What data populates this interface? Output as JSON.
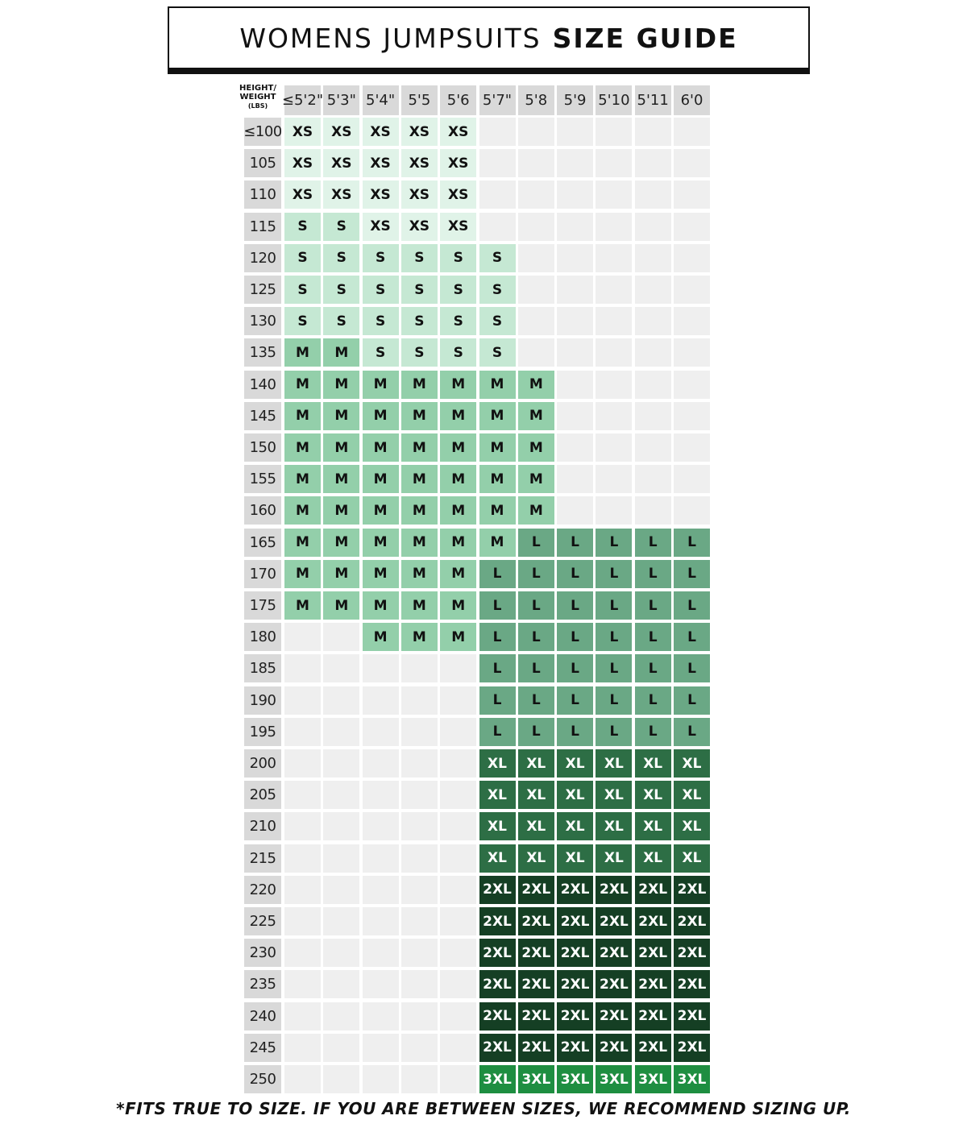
{
  "title": {
    "light": "WOMENS JUMPSUITS",
    "bold": "SIZE GUIDE"
  },
  "corner": {
    "line1": "HEIGHT/",
    "line2": "WEIGHT",
    "line3": "(LBS)"
  },
  "heights": [
    "≤5'2\"",
    "5'3\"",
    "5'4\"",
    "5'5",
    "5'6",
    "5'7\"",
    "5'8",
    "5'9",
    "5'10",
    "5'11",
    "6'0"
  ],
  "colors": {
    "XS": "#e0f3e8",
    "S": "#c5e8d3",
    "M": "#93cfaa",
    "L": "#6aa885",
    "XL": "#2d6e45",
    "2XL": "#153f24",
    "3XL": "#1e8e41",
    "empty": "#efefef"
  },
  "rows": [
    {
      "weight": "≤100",
      "sizes": [
        "XS",
        "XS",
        "XS",
        "XS",
        "XS",
        "",
        "",
        "",
        "",
        "",
        ""
      ]
    },
    {
      "weight": "105",
      "sizes": [
        "XS",
        "XS",
        "XS",
        "XS",
        "XS",
        "",
        "",
        "",
        "",
        "",
        ""
      ]
    },
    {
      "weight": "110",
      "sizes": [
        "XS",
        "XS",
        "XS",
        "XS",
        "XS",
        "",
        "",
        "",
        "",
        "",
        ""
      ]
    },
    {
      "weight": "115",
      "sizes": [
        "S",
        "S",
        "XS",
        "XS",
        "XS",
        "",
        "",
        "",
        "",
        "",
        ""
      ]
    },
    {
      "weight": "120",
      "sizes": [
        "S",
        "S",
        "S",
        "S",
        "S",
        "S",
        "",
        "",
        "",
        "",
        ""
      ]
    },
    {
      "weight": "125",
      "sizes": [
        "S",
        "S",
        "S",
        "S",
        "S",
        "S",
        "",
        "",
        "",
        "",
        ""
      ]
    },
    {
      "weight": "130",
      "sizes": [
        "S",
        "S",
        "S",
        "S",
        "S",
        "S",
        "",
        "",
        "",
        "",
        ""
      ]
    },
    {
      "weight": "135",
      "sizes": [
        "M",
        "M",
        "S",
        "S",
        "S",
        "S",
        "",
        "",
        "",
        "",
        ""
      ]
    },
    {
      "weight": "140",
      "sizes": [
        "M",
        "M",
        "M",
        "M",
        "M",
        "M",
        "M",
        "",
        "",
        "",
        ""
      ]
    },
    {
      "weight": "145",
      "sizes": [
        "M",
        "M",
        "M",
        "M",
        "M",
        "M",
        "M",
        "",
        "",
        "",
        ""
      ]
    },
    {
      "weight": "150",
      "sizes": [
        "M",
        "M",
        "M",
        "M",
        "M",
        "M",
        "M",
        "",
        "",
        "",
        ""
      ]
    },
    {
      "weight": "155",
      "sizes": [
        "M",
        "M",
        "M",
        "M",
        "M",
        "M",
        "M",
        "",
        "",
        "",
        ""
      ]
    },
    {
      "weight": "160",
      "sizes": [
        "M",
        "M",
        "M",
        "M",
        "M",
        "M",
        "M",
        "",
        "",
        "",
        ""
      ]
    },
    {
      "weight": "165",
      "sizes": [
        "M",
        "M",
        "M",
        "M",
        "M",
        "M",
        "L",
        "L",
        "L",
        "L",
        "L"
      ]
    },
    {
      "weight": "170",
      "sizes": [
        "M",
        "M",
        "M",
        "M",
        "M",
        "L",
        "L",
        "L",
        "L",
        "L",
        "L"
      ]
    },
    {
      "weight": "175",
      "sizes": [
        "M",
        "M",
        "M",
        "M",
        "M",
        "L",
        "L",
        "L",
        "L",
        "L",
        "L"
      ]
    },
    {
      "weight": "180",
      "sizes": [
        "",
        "",
        "M",
        "M",
        "M",
        "L",
        "L",
        "L",
        "L",
        "L",
        "L"
      ]
    },
    {
      "weight": "185",
      "sizes": [
        "",
        "",
        "",
        "",
        "",
        "L",
        "L",
        "L",
        "L",
        "L",
        "L"
      ]
    },
    {
      "weight": "190",
      "sizes": [
        "",
        "",
        "",
        "",
        "",
        "L",
        "L",
        "L",
        "L",
        "L",
        "L"
      ]
    },
    {
      "weight": "195",
      "sizes": [
        "",
        "",
        "",
        "",
        "",
        "L",
        "L",
        "L",
        "L",
        "L",
        "L"
      ]
    },
    {
      "weight": "200",
      "sizes": [
        "",
        "",
        "",
        "",
        "",
        "XL",
        "XL",
        "XL",
        "XL",
        "XL",
        "XL"
      ]
    },
    {
      "weight": "205",
      "sizes": [
        "",
        "",
        "",
        "",
        "",
        "XL",
        "XL",
        "XL",
        "XL",
        "XL",
        "XL"
      ]
    },
    {
      "weight": "210",
      "sizes": [
        "",
        "",
        "",
        "",
        "",
        "XL",
        "XL",
        "XL",
        "XL",
        "XL",
        "XL"
      ]
    },
    {
      "weight": "215",
      "sizes": [
        "",
        "",
        "",
        "",
        "",
        "XL",
        "XL",
        "XL",
        "XL",
        "XL",
        "XL"
      ]
    },
    {
      "weight": "220",
      "sizes": [
        "",
        "",
        "",
        "",
        "",
        "2XL",
        "2XL",
        "2XL",
        "2XL",
        "2XL",
        "2XL"
      ]
    },
    {
      "weight": "225",
      "sizes": [
        "",
        "",
        "",
        "",
        "",
        "2XL",
        "2XL",
        "2XL",
        "2XL",
        "2XL",
        "2XL"
      ]
    },
    {
      "weight": "230",
      "sizes": [
        "",
        "",
        "",
        "",
        "",
        "2XL",
        "2XL",
        "2XL",
        "2XL",
        "2XL",
        "2XL"
      ]
    },
    {
      "weight": "235",
      "sizes": [
        "",
        "",
        "",
        "",
        "",
        "2XL",
        "2XL",
        "2XL",
        "2XL",
        "2XL",
        "2XL"
      ]
    },
    {
      "weight": "240",
      "sizes": [
        "",
        "",
        "",
        "",
        "",
        "2XL",
        "2XL",
        "2XL",
        "2XL",
        "2XL",
        "2XL"
      ]
    },
    {
      "weight": "245",
      "sizes": [
        "",
        "",
        "",
        "",
        "",
        "2XL",
        "2XL",
        "2XL",
        "2XL",
        "2XL",
        "2XL"
      ]
    },
    {
      "weight": "250",
      "sizes": [
        "",
        "",
        "",
        "",
        "",
        "3XL",
        "3XL",
        "3XL",
        "3XL",
        "3XL",
        "3XL"
      ]
    }
  ],
  "footer": "*FITS TRUE TO SIZE. IF YOU ARE BETWEEN SIZES, WE RECOMMEND SIZING UP."
}
